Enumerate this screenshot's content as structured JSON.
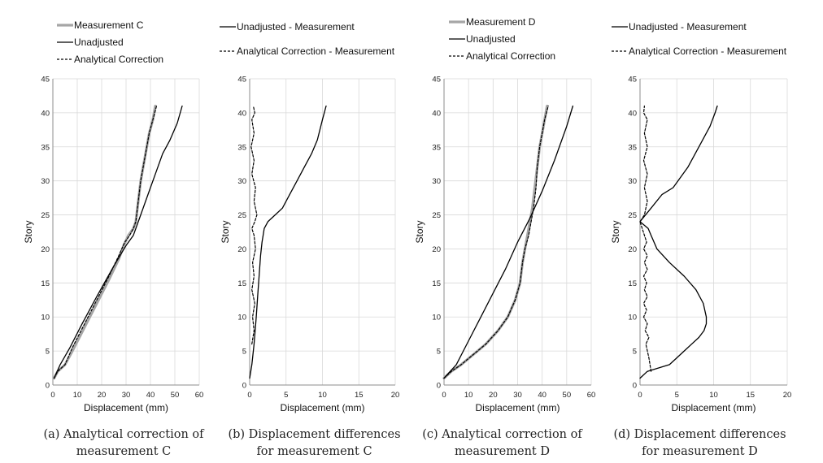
{
  "chart_data": [
    {
      "panel": "a",
      "type": "line",
      "caption": [
        "(a) Analytical correction of",
        "measurement C"
      ],
      "xlabel": "Displacement (mm)",
      "ylabel": "Story",
      "xlim": [
        0,
        60
      ],
      "xticks": [
        0,
        10,
        20,
        30,
        40,
        50,
        60
      ],
      "ylim": [
        0,
        45
      ],
      "yticks": [
        0,
        5,
        10,
        15,
        20,
        25,
        30,
        35,
        40,
        45
      ],
      "grid": true,
      "legend_position": "top-left",
      "series": [
        {
          "name": "Measurement C",
          "style": "gray-thick",
          "x": [
            0.5,
            2,
            5,
            8,
            13,
            18,
            23,
            27,
            29,
            31,
            33,
            34,
            35,
            36,
            37.5,
            38.5,
            39.5,
            41,
            42
          ],
          "y": [
            1,
            2,
            3,
            5,
            8.5,
            12,
            15.5,
            18.5,
            20.5,
            22,
            23,
            24,
            27,
            30,
            33,
            35,
            37,
            39,
            41
          ]
        },
        {
          "name": "Unadjusted",
          "style": "solid",
          "x": [
            0.5,
            3,
            7,
            12,
            18,
            25,
            30,
            33,
            36,
            39,
            42,
            45,
            48,
            51,
            53
          ],
          "y": [
            1,
            3,
            5.5,
            9,
            13,
            17.5,
            20.5,
            22,
            25,
            28,
            31,
            34,
            36,
            38.5,
            41
          ]
        },
        {
          "name": "Analytical Correction",
          "style": "dashed",
          "x": [
            0.5,
            2,
            5,
            8,
            13,
            18,
            23,
            27,
            29.5,
            31.5,
            33,
            34,
            35,
            36,
            37.5,
            38.5,
            39.5,
            41,
            42.5
          ],
          "y": [
            1,
            2,
            3,
            5.5,
            9,
            12.5,
            16,
            19,
            21,
            22,
            23,
            24,
            27,
            30,
            33,
            35,
            37,
            39,
            41
          ]
        }
      ]
    },
    {
      "panel": "b",
      "type": "line",
      "caption": [
        "(b) Displacement differences",
        "for measurement C"
      ],
      "xlabel": "Displacement (mm)",
      "ylabel": "Story",
      "xlim": [
        0,
        20
      ],
      "xticks": [
        0,
        5,
        10,
        15,
        20
      ],
      "ylim": [
        0,
        45
      ],
      "yticks": [
        0,
        5,
        10,
        15,
        20,
        25,
        30,
        35,
        40,
        45
      ],
      "grid": true,
      "legend_position": "top-left",
      "series": [
        {
          "name": "Unadjusted - Measurement",
          "style": "solid",
          "x": [
            0,
            0.3,
            0.6,
            0.9,
            1.1,
            1.3,
            1.5,
            1.7,
            2,
            2.5,
            3.5,
            4.5,
            5.5,
            6.5,
            7.5,
            8.5,
            9.3,
            10,
            10.5
          ],
          "y": [
            1,
            3,
            6,
            10,
            13,
            16,
            19,
            21,
            23,
            24,
            25,
            26,
            28,
            30,
            32,
            34,
            36,
            39,
            41
          ]
        },
        {
          "name": "Analytical Correction - Measurement",
          "style": "dashed",
          "x": [
            0.3,
            0.6,
            0.4,
            0.7,
            0.3,
            0.6,
            0.4,
            0.8,
            0.6,
            0.3,
            0.7,
            1.0,
            0.6,
            0.8,
            0.3,
            0.6,
            0.2,
            0.6,
            0.3,
            0.7,
            0.5
          ],
          "y": [
            6,
            8,
            10,
            12,
            14,
            16,
            18,
            20,
            22,
            23,
            24,
            25,
            27,
            29,
            31,
            33,
            35,
            37,
            39,
            40,
            41
          ]
        }
      ]
    },
    {
      "panel": "c",
      "type": "line",
      "caption": [
        "(c) Analytical correction of",
        "measurement D"
      ],
      "xlabel": "Displacement (mm)",
      "ylabel": "Story",
      "xlim": [
        0,
        60
      ],
      "xticks": [
        0,
        10,
        20,
        30,
        40,
        50,
        60
      ],
      "ylim": [
        0,
        45
      ],
      "yticks": [
        0,
        5,
        10,
        15,
        20,
        25,
        30,
        35,
        40,
        45
      ],
      "grid": true,
      "legend_position": "top-left",
      "series": [
        {
          "name": "Measurement D",
          "style": "gray-thick",
          "x": [
            0,
            3,
            7,
            12,
            17,
            22,
            26,
            29,
            31,
            32,
            33,
            34,
            35,
            36,
            37,
            38,
            39,
            40,
            41,
            42
          ],
          "y": [
            1,
            2,
            3,
            4.5,
            6,
            8,
            10,
            12.5,
            15,
            18,
            20,
            22,
            24,
            26,
            29,
            32,
            35,
            37,
            39,
            41
          ]
        },
        {
          "name": "Unadjusted",
          "style": "solid",
          "x": [
            0,
            5,
            10,
            15,
            20,
            25,
            30,
            35,
            40,
            45,
            50,
            52.5
          ],
          "y": [
            1,
            3,
            6.5,
            10,
            13.5,
            17,
            21,
            24.5,
            28.5,
            33,
            38,
            41
          ]
        },
        {
          "name": "Analytical Correction",
          "style": "dashed",
          "x": [
            0,
            3,
            7,
            12,
            17,
            22,
            26,
            29,
            31,
            32,
            33,
            34.5,
            35.5,
            36.5,
            37.5,
            38,
            39,
            40,
            41,
            42.5
          ],
          "y": [
            1,
            2,
            3,
            4.5,
            6,
            8,
            10,
            12.5,
            15,
            18,
            20,
            22,
            24,
            26,
            29,
            32,
            35,
            37,
            39,
            41
          ]
        }
      ]
    },
    {
      "panel": "d",
      "type": "line",
      "caption": [
        "(d) Displacement differences",
        "for measurement D"
      ],
      "xlabel": "Displacement (mm)",
      "ylabel": "Story",
      "xlim": [
        0,
        20
      ],
      "xticks": [
        0,
        5,
        10,
        15,
        20
      ],
      "ylim": [
        0,
        45
      ],
      "yticks": [
        0,
        5,
        10,
        15,
        20,
        25,
        30,
        35,
        40,
        45
      ],
      "grid": true,
      "legend_position": "top-left",
      "series": [
        {
          "name": "Unadjusted - Measurement",
          "style": "solid",
          "x": [
            0,
            1,
            4,
            5,
            6,
            7,
            8,
            8.7,
            9,
            9,
            8.6,
            7.6,
            6,
            4,
            2.3,
            1.5,
            1.1,
            0,
            1.5,
            3,
            4.5,
            6.5,
            8,
            9.5,
            10.2,
            10.5
          ],
          "y": [
            1,
            2,
            3,
            4,
            5,
            6,
            7,
            8,
            9,
            10,
            12,
            14,
            16,
            18,
            20,
            22,
            23,
            24,
            26,
            28,
            29,
            32,
            35,
            38,
            40,
            41
          ]
        },
        {
          "name": "Analytical Correction - Measurement",
          "style": "dashed",
          "x": [
            1.5,
            1.2,
            0.8,
            1.2,
            0.7,
            1.0,
            0.5,
            0.9,
            0.5,
            1.0,
            0.6,
            0.9,
            0.5,
            1.0,
            0.6,
            1.0,
            0.5,
            0.9,
            0.3,
            0.0,
            0.6,
            1.0,
            0.6,
            1.0,
            0.5,
            1.0,
            0.6,
            1.0,
            0.5,
            0.6
          ],
          "y": [
            2,
            4,
            6,
            7,
            8,
            9,
            10,
            11,
            12,
            13,
            14,
            15,
            16,
            17,
            18,
            19,
            20,
            21,
            23,
            24,
            25,
            27,
            29,
            31,
            33,
            35,
            37,
            39,
            40,
            41
          ]
        }
      ]
    }
  ]
}
